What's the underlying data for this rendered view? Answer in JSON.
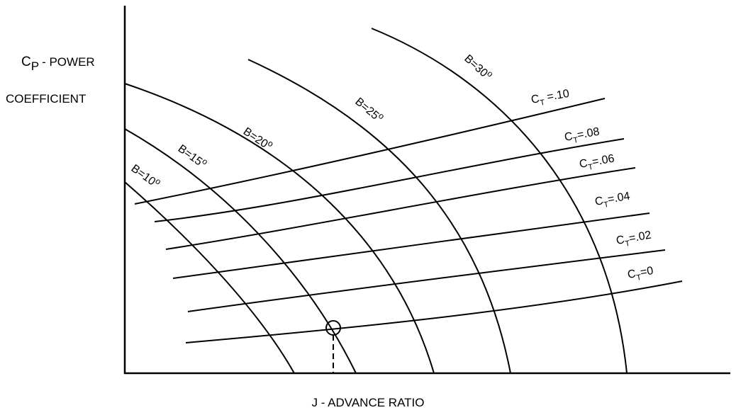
{
  "diagram": {
    "y_axis_title": {
      "symbol": "C",
      "subscript": "P",
      "text": "- POWER",
      "line2": "COEFFICIENT"
    },
    "x_axis_title": "J - ADVANCE RATIO",
    "blade_angle_curves": [
      {
        "id": "b10",
        "label": "B=10",
        "deg": "o"
      },
      {
        "id": "b15",
        "label": "B=15",
        "deg": "o"
      },
      {
        "id": "b20",
        "label": "B=20",
        "deg": "o"
      },
      {
        "id": "b25",
        "label": "B=25",
        "deg": "o"
      },
      {
        "id": "b30",
        "label": "B=30",
        "deg": "o"
      }
    ],
    "thrust_coefficient_lines": [
      {
        "id": "ct010",
        "symbol": "C",
        "subscript": "T",
        "value": " =.10"
      },
      {
        "id": "ct008",
        "symbol": "C",
        "subscript": "T",
        "value": "=.08"
      },
      {
        "id": "ct006",
        "symbol": "C",
        "subscript": "T",
        "value": "=.06"
      },
      {
        "id": "ct004",
        "symbol": "C",
        "subscript": "T",
        "value": "=.04"
      },
      {
        "id": "ct002",
        "symbol": "C",
        "subscript": "T",
        "value": "=.02"
      },
      {
        "id": "ct0",
        "symbol": "C",
        "subscript": "T",
        "value": "=0"
      }
    ],
    "operating_point_marker": "circle"
  }
}
